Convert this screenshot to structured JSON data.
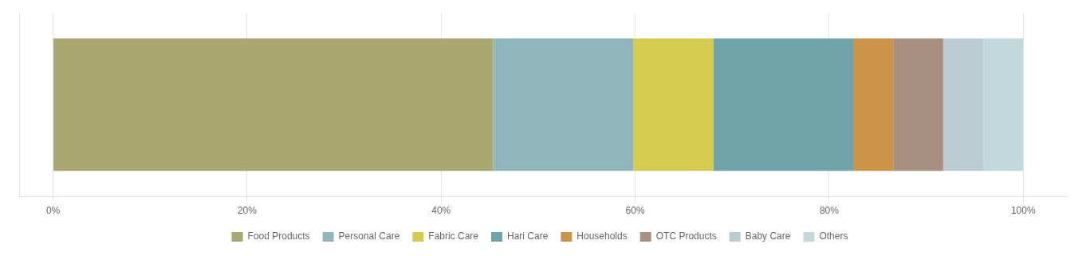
{
  "chart_data": {
    "type": "bar",
    "orientation": "horizontal",
    "stacked": true,
    "categories": [
      null
    ],
    "series": [
      {
        "name": "Food Products",
        "color": "#a8a870",
        "values": [
          45.36082474226804
        ]
      },
      {
        "name": "Personal Care",
        "color": "#90b5ba",
        "values": [
          14.432989690721648
        ]
      },
      {
        "name": "Fabric Care",
        "color": "#d4cb50",
        "values": [
          8.24742268041237
        ]
      },
      {
        "name": "Hari Care",
        "color": "#6fa5aa",
        "values": [
          14.432989690721648
        ]
      },
      {
        "name": "Households",
        "color": "#cc9448",
        "values": [
          4.123711340206185
        ]
      },
      {
        "name": "OTC Products",
        "color": "#a89080",
        "values": [
          5.154639175257732
        ]
      },
      {
        "name": "Baby Care",
        "color": "#b8ccd2",
        "values": [
          4.123711340206185
        ]
      },
      {
        "name": "Others",
        "color": "#c2d8dc",
        "values": [
          4.123711340206185
        ]
      }
    ],
    "xlim": [
      -3.5,
      104.5
    ],
    "xticks": [
      {
        "value": 0,
        "label": "0%"
      },
      {
        "value": 20,
        "label": "20%"
      },
      {
        "value": 40,
        "label": "40%"
      },
      {
        "value": 60,
        "label": "60%"
      },
      {
        "value": 80,
        "label": "80%"
      },
      {
        "value": 100,
        "label": "100%"
      }
    ],
    "tick_labels": "x",
    "grid": true,
    "legend": "bottom"
  }
}
